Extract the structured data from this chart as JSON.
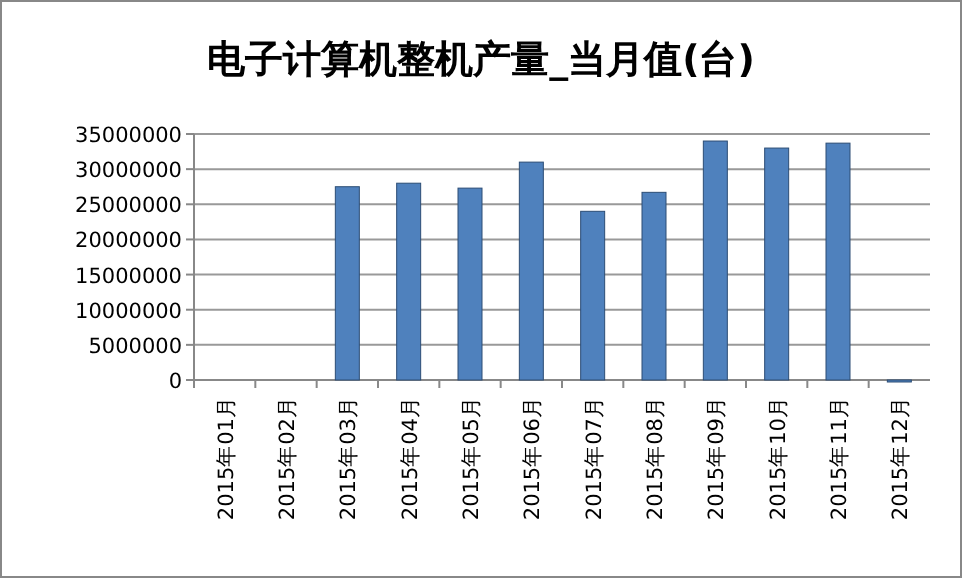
{
  "chart_data": {
    "type": "bar",
    "title": "电子计算机整机产量_当月值(台)",
    "categories": [
      "2015年01月",
      "2015年02月",
      "2015年03月",
      "2015年04月",
      "2015年05月",
      "2015年06月",
      "2015年07月",
      "2015年08月",
      "2015年09月",
      "2015年10月",
      "2015年11月",
      "2015年12月"
    ],
    "values": [
      null,
      null,
      27500000,
      28000000,
      27300000,
      31000000,
      24000000,
      26700000,
      34000000,
      33000000,
      33700000,
      0
    ],
    "color": "#4f81bd",
    "ylim": [
      0,
      35000000
    ],
    "yticks": [
      0,
      5000000,
      10000000,
      15000000,
      20000000,
      25000000,
      30000000,
      35000000
    ],
    "grid": "y"
  }
}
